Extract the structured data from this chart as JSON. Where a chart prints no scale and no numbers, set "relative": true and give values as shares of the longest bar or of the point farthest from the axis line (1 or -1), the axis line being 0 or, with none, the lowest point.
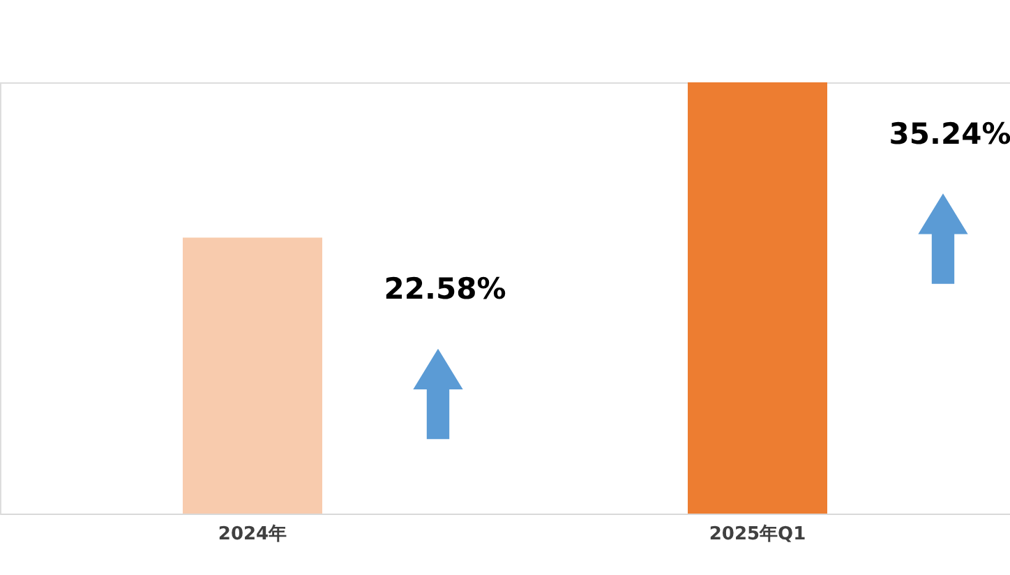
{
  "chart_data": {
    "type": "bar",
    "categories": [
      "2024年",
      "2025年Q1"
    ],
    "values": [
      0.64,
      1
    ],
    "relative": true,
    "colors": [
      "#f8cbad",
      "#ed7d31"
    ],
    "annotations": [
      "22.58%",
      "35.24%"
    ]
  }
}
